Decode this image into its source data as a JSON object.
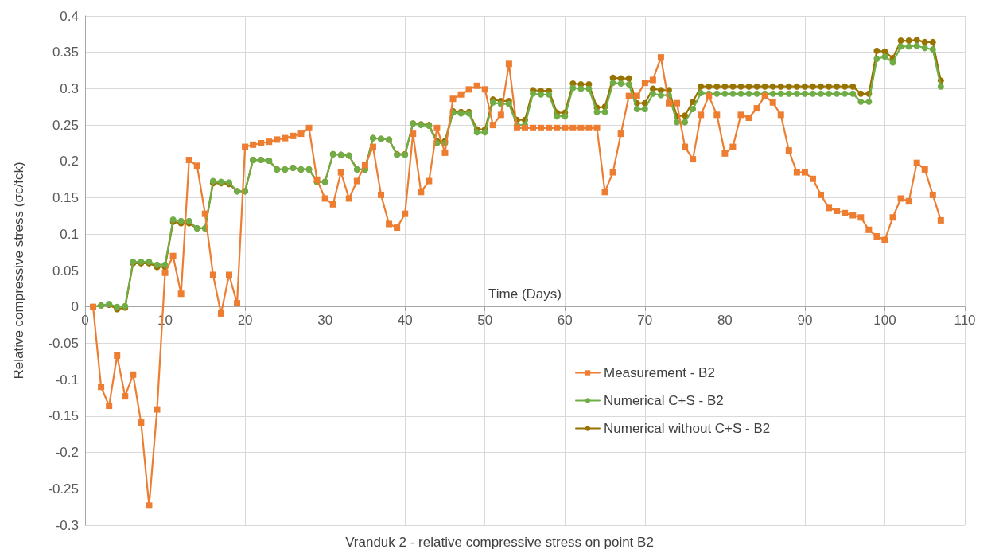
{
  "chart_data": {
    "type": "line",
    "title": "Vranduk 2 - relative compressive stress on point B2",
    "xlabel": "Time (Days)",
    "ylabel": "Relative compressive stress (σc/fck)",
    "x": [
      1,
      2,
      3,
      4,
      5,
      6,
      7,
      8,
      9,
      10,
      11,
      12,
      13,
      14,
      15,
      16,
      17,
      18,
      19,
      20,
      21,
      22,
      23,
      24,
      25,
      26,
      27,
      28,
      29,
      30,
      31,
      32,
      33,
      34,
      35,
      36,
      37,
      38,
      39,
      40,
      41,
      42,
      43,
      44,
      45,
      46,
      47,
      48,
      49,
      50,
      51,
      52,
      53,
      54,
      55,
      56,
      57,
      58,
      59,
      60,
      61,
      62,
      63,
      64,
      65,
      66,
      67,
      68,
      69,
      70,
      71,
      72,
      73,
      74,
      75,
      76,
      77,
      78,
      79,
      80,
      81,
      82,
      83,
      84,
      85,
      86,
      87,
      88,
      89,
      90,
      91,
      92,
      93,
      94,
      95,
      96,
      97,
      98,
      99,
      100,
      101,
      102,
      103,
      104,
      105,
      106,
      107
    ],
    "series": [
      {
        "name": "Measurement - B2",
        "color": "#ed7d31",
        "marker": "square",
        "values": [
          0,
          -0.11,
          -0.136,
          -0.067,
          -0.123,
          -0.093,
          -0.159,
          -0.273,
          -0.141,
          0.047,
          0.07,
          0.018,
          0.202,
          0.194,
          0.128,
          0.044,
          -0.009,
          0.044,
          0.005,
          0.22,
          0.223,
          0.225,
          0.227,
          0.23,
          0.232,
          0.235,
          0.238,
          0.246,
          0.175,
          0.149,
          0.141,
          0.185,
          0.149,
          0.173,
          0.195,
          0.22,
          0.154,
          0.114,
          0.109,
          0.128,
          0.238,
          0.158,
          0.173,
          0.246,
          0.212,
          0.286,
          0.292,
          0.299,
          0.304,
          0.299,
          0.25,
          0.264,
          0.334,
          0.246,
          0.246,
          0.246,
          0.246,
          0.246,
          0.246,
          0.246,
          0.246,
          0.246,
          0.246,
          0.246,
          0.158,
          0.185,
          0.238,
          0.29,
          0.29,
          0.308,
          0.312,
          0.343,
          0.28,
          0.28,
          0.22,
          0.203,
          0.264,
          0.29,
          0.264,
          0.211,
          0.22,
          0.264,
          0.26,
          0.273,
          0.29,
          0.281,
          0.264,
          0.215,
          0.185,
          0.185,
          0.176,
          0.154,
          0.136,
          0.132,
          0.129,
          0.126,
          0.123,
          0.106,
          0.097,
          0.092,
          0.123,
          0.149,
          0.145,
          0.198,
          0.189,
          0.154,
          0.119
        ]
      },
      {
        "name": "Numerical C+S - B2",
        "color": "#70ad47",
        "marker": "circle",
        "values": [
          0,
          0.002,
          0.004,
          0,
          0.001,
          0.062,
          0.062,
          0.062,
          0.058,
          0.058,
          0.12,
          0.118,
          0.118,
          0.108,
          0.108,
          0.173,
          0.172,
          0.171,
          0.159,
          0.159,
          0.202,
          0.202,
          0.201,
          0.189,
          0.189,
          0.191,
          0.189,
          0.189,
          0.172,
          0.172,
          0.21,
          0.209,
          0.208,
          0.189,
          0.189,
          0.232,
          0.231,
          0.23,
          0.209,
          0.209,
          0.252,
          0.25,
          0.249,
          0.225,
          0.225,
          0.267,
          0.266,
          0.266,
          0.24,
          0.24,
          0.281,
          0.279,
          0.279,
          0.25,
          0.25,
          0.293,
          0.292,
          0.292,
          0.262,
          0.262,
          0.301,
          0.3,
          0.3,
          0.268,
          0.268,
          0.308,
          0.307,
          0.306,
          0.272,
          0.272,
          0.293,
          0.291,
          0.291,
          0.254,
          0.254,
          0.272,
          0.294,
          0.293,
          0.293,
          0.293,
          0.293,
          0.293,
          0.293,
          0.293,
          0.293,
          0.293,
          0.293,
          0.293,
          0.293,
          0.293,
          0.293,
          0.293,
          0.293,
          0.293,
          0.293,
          0.293,
          0.282,
          0.282,
          0.341,
          0.344,
          0.336,
          0.358,
          0.358,
          0.359,
          0.356,
          0.354,
          0.303
        ]
      },
      {
        "name": "Numerical without C+S - B2",
        "color": "#997300",
        "marker": "circle",
        "values": [
          0,
          0.002,
          0.003,
          -0.003,
          -0.001,
          0.06,
          0.06,
          0.06,
          0.055,
          0.055,
          0.117,
          0.115,
          0.115,
          0.108,
          0.108,
          0.17,
          0.17,
          0.169,
          0.159,
          0.159,
          0.202,
          0.202,
          0.201,
          0.189,
          0.189,
          0.191,
          0.189,
          0.189,
          0.172,
          0.172,
          0.21,
          0.209,
          0.208,
          0.189,
          0.189,
          0.232,
          0.231,
          0.23,
          0.21,
          0.21,
          0.252,
          0.251,
          0.25,
          0.228,
          0.228,
          0.269,
          0.268,
          0.268,
          0.244,
          0.244,
          0.285,
          0.283,
          0.283,
          0.257,
          0.257,
          0.298,
          0.297,
          0.297,
          0.267,
          0.267,
          0.307,
          0.306,
          0.306,
          0.274,
          0.275,
          0.315,
          0.314,
          0.314,
          0.28,
          0.28,
          0.3,
          0.298,
          0.298,
          0.262,
          0.263,
          0.282,
          0.303,
          0.303,
          0.303,
          0.303,
          0.303,
          0.303,
          0.303,
          0.303,
          0.303,
          0.303,
          0.303,
          0.303,
          0.303,
          0.303,
          0.303,
          0.303,
          0.303,
          0.303,
          0.303,
          0.303,
          0.293,
          0.293,
          0.352,
          0.351,
          0.342,
          0.366,
          0.366,
          0.367,
          0.364,
          0.364,
          0.311
        ]
      }
    ],
    "xlim": [
      0,
      110
    ],
    "xticks": [
      0,
      10,
      20,
      30,
      40,
      50,
      60,
      70,
      80,
      90,
      100,
      110
    ],
    "ylim": [
      -0.3,
      0.4
    ],
    "yticks": [
      -0.3,
      -0.25,
      -0.2,
      -0.15,
      -0.1,
      -0.05,
      0,
      0.05,
      0.1,
      0.15,
      0.2,
      0.25,
      0.3,
      0.35,
      0.4
    ],
    "grid": true,
    "legend": "bottom right",
    "line_style": "solid"
  }
}
